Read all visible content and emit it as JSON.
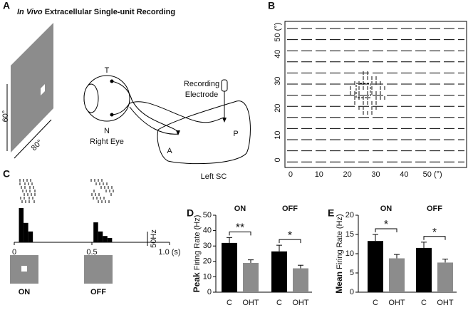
{
  "panel_letters": [
    "A",
    "B",
    "C",
    "D",
    "E"
  ],
  "panel_a": {
    "title_italic": "In Vivo",
    "title_rest": " Extracellular Single-unit Recording",
    "height_label": "60°",
    "width_label": "80°",
    "temporal": "T",
    "nasal": "N",
    "eye": "Right Eye",
    "electrode_1": "Recording",
    "electrode_2": "Electrode",
    "sc": "Left SC",
    "anterior": "A",
    "posterior": "P"
  },
  "panel_c": {
    "stimuli": [
      "ON",
      "OFF"
    ]
  },
  "chart_data": [
    {
      "type": "receptive-field",
      "xlim": [
        -2,
        62
      ],
      "xticks": [
        0,
        10,
        20,
        30,
        40,
        {
          "value": 50,
          "label": "50 (°)"
        }
      ],
      "ylim": [
        -2,
        52
      ],
      "yticks": [
        0,
        10,
        20,
        30,
        40,
        {
          "value": 50,
          "label": "50 (°)"
        }
      ]
    },
    {
      "type": "histogram",
      "bins": [
        0.03,
        0.06,
        0.09,
        0.12,
        0.15,
        0.18,
        0.21,
        0.24,
        0.27,
        0.3,
        0.33,
        0.36,
        0.39,
        0.42,
        0.45,
        0.48,
        0.51,
        0.54,
        0.57,
        0.6,
        0.63
      ],
      "values": [
        120,
        68,
        38,
        0,
        0,
        0,
        0,
        0,
        0,
        0,
        0,
        0,
        0,
        0,
        0,
        0,
        70,
        38,
        22,
        15
      ],
      "color": "#000000",
      "xlim": [
        0,
        1.0
      ],
      "xticks": [
        0,
        0.5,
        {
          "value": 1.0,
          "label": "1.0 (s)"
        }
      ],
      "scale_bar": {
        "value": 50,
        "label": "50Hz"
      }
    },
    {
      "type": "bar",
      "y_label_bold": "Peak",
      "y_label": " Firing Rate (Hz)",
      "groups": [
        "ON",
        "OFF"
      ],
      "significance": [
        "**",
        "*"
      ],
      "categories": [
        "C",
        "OHT",
        "C",
        "OHT"
      ],
      "values": [
        32,
        19,
        26.5,
        15.5
      ],
      "errors": [
        3.5,
        2,
        4,
        2
      ],
      "colors": [
        "#000000",
        "#8c8c8c",
        "#000000",
        "#8c8c8c"
      ],
      "ylim": [
        0,
        50
      ],
      "yticks": [
        0,
        10,
        20,
        30,
        40,
        50
      ]
    },
    {
      "type": "bar",
      "y_label_bold": "Mean",
      "y_label": " Firing Rate (Hz)",
      "groups": [
        "ON",
        "OFF"
      ],
      "significance": [
        "*",
        "*"
      ],
      "categories": [
        "C",
        "OHT",
        "C",
        "OHT"
      ],
      "values": [
        13.3,
        8.8,
        11.5,
        7.7
      ],
      "errors": [
        1.7,
        1,
        1.5,
        0.9
      ],
      "colors": [
        "#000000",
        "#8c8c8c",
        "#000000",
        "#8c8c8c"
      ],
      "ylim": [
        0,
        20
      ],
      "yticks": [
        0,
        5,
        10,
        15,
        20
      ]
    }
  ]
}
